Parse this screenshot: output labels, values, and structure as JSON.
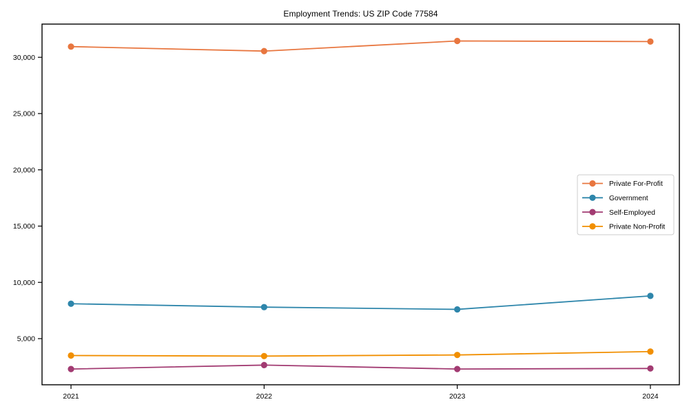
{
  "chart_data": {
    "type": "line",
    "title": "Employment Trends: US ZIP Code 77584",
    "xlabel": "",
    "ylabel": "",
    "x": [
      2021,
      2022,
      2023,
      2024
    ],
    "xtick_labels": [
      "2021",
      "2022",
      "2023",
      "2024"
    ],
    "xlim": [
      2020.85,
      2024.15
    ],
    "ylim": [
      900,
      32950
    ],
    "yticks": [
      5000,
      10000,
      15000,
      20000,
      25000,
      30000
    ],
    "ytick_labels": [
      "5,000",
      "10,000",
      "15,000",
      "20,000",
      "25,000",
      "30,000"
    ],
    "grid": false,
    "marker": "circle",
    "legend_position": "center-right",
    "series": [
      {
        "name": "Private For-Profit",
        "color": "#E8763F",
        "values": [
          30950,
          30550,
          31450,
          31400
        ]
      },
      {
        "name": "Government",
        "color": "#2E86AB",
        "values": [
          8100,
          7800,
          7600,
          8800
        ]
      },
      {
        "name": "Self-Employed",
        "color": "#A23B72",
        "values": [
          2300,
          2650,
          2300,
          2350
        ]
      },
      {
        "name": "Private Non-Profit",
        "color": "#F18F01",
        "values": [
          3500,
          3450,
          3550,
          3850
        ]
      }
    ],
    "style": {
      "axis_color": "#000000",
      "text_color": "#000000",
      "background": "#ffffff",
      "legend_border": "#cccccc",
      "legend_background": "#ffffff"
    }
  }
}
